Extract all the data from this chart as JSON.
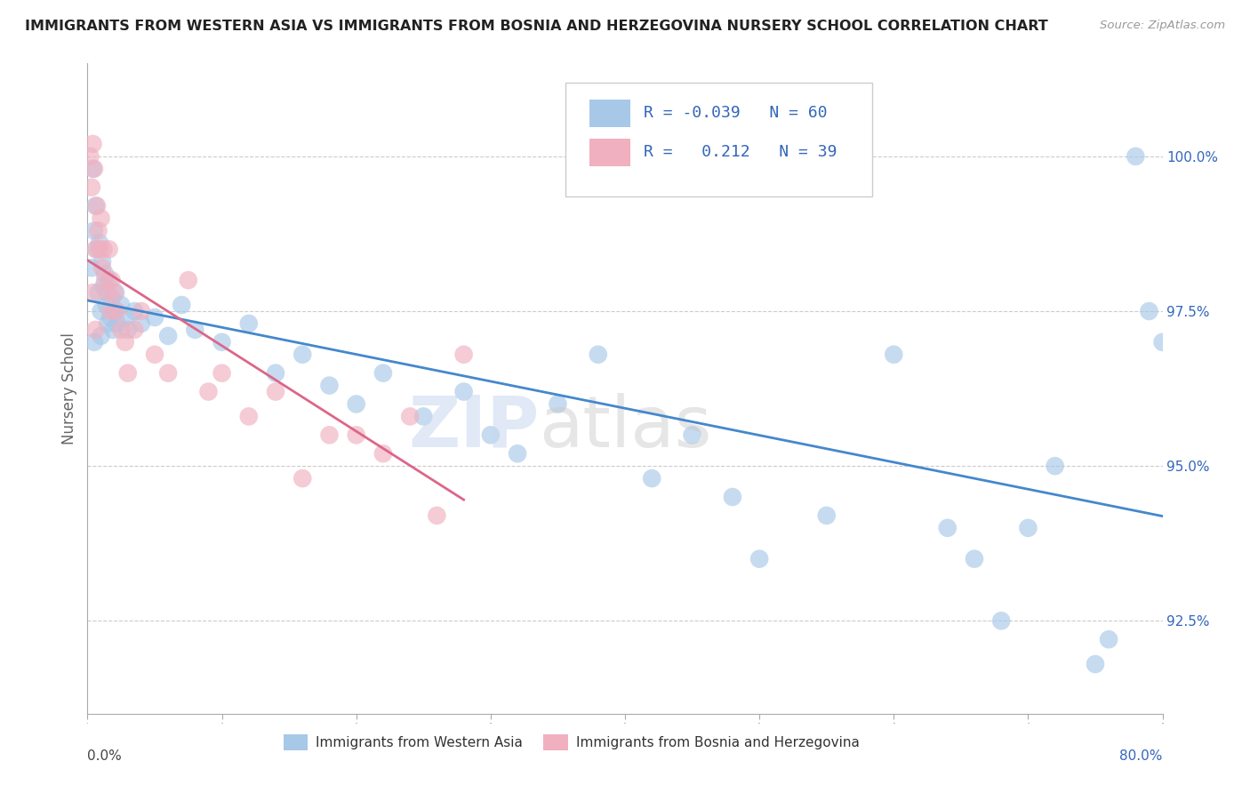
{
  "title": "IMMIGRANTS FROM WESTERN ASIA VS IMMIGRANTS FROM BOSNIA AND HERZEGOVINA NURSERY SCHOOL CORRELATION CHART",
  "source": "Source: ZipAtlas.com",
  "ylabel": "Nursery School",
  "x_min": 0.0,
  "x_max": 80.0,
  "y_min": 91.0,
  "y_max": 101.5,
  "y_ticks": [
    92.5,
    95.0,
    97.5,
    100.0
  ],
  "legend_blue_r": "-0.039",
  "legend_blue_n": "60",
  "legend_pink_r": "0.212",
  "legend_pink_n": "39",
  "blue_color": "#a8c8e8",
  "pink_color": "#f0b0c0",
  "blue_line_color": "#4488cc",
  "pink_line_color": "#dd6688",
  "blue_scatter_x": [
    0.3,
    0.4,
    0.5,
    0.6,
    0.7,
    0.8,
    0.9,
    1.0,
    1.1,
    1.2,
    1.3,
    1.4,
    1.5,
    1.6,
    1.7,
    1.8,
    1.9,
    2.0,
    2.1,
    2.2,
    2.5,
    2.8,
    3.0,
    3.5,
    4.0,
    5.0,
    6.0,
    7.0,
    8.0,
    10.0,
    12.0,
    14.0,
    16.0,
    18.0,
    20.0,
    22.0,
    25.0,
    28.0,
    30.0,
    32.0,
    35.0,
    38.0,
    42.0,
    45.0,
    48.0,
    50.0,
    55.0,
    60.0,
    64.0,
    66.0,
    68.0,
    70.0,
    72.0,
    75.0,
    76.0,
    78.0,
    79.0,
    80.0,
    0.5,
    1.0
  ],
  "blue_scatter_y": [
    98.2,
    99.8,
    98.8,
    99.2,
    98.5,
    97.8,
    98.6,
    97.5,
    98.3,
    97.9,
    98.1,
    97.6,
    97.3,
    98.0,
    97.4,
    97.7,
    97.2,
    97.5,
    97.8,
    97.3,
    97.6,
    97.4,
    97.2,
    97.5,
    97.3,
    97.4,
    97.1,
    97.6,
    97.2,
    97.0,
    97.3,
    96.5,
    96.8,
    96.3,
    96.0,
    96.5,
    95.8,
    96.2,
    95.5,
    95.2,
    96.0,
    96.8,
    94.8,
    95.5,
    94.5,
    93.5,
    94.2,
    96.8,
    94.0,
    93.5,
    92.5,
    94.0,
    95.0,
    91.8,
    92.2,
    100.0,
    97.5,
    97.0,
    97.0,
    97.1
  ],
  "pink_scatter_x": [
    0.2,
    0.3,
    0.4,
    0.5,
    0.6,
    0.7,
    0.8,
    0.9,
    1.0,
    1.1,
    1.2,
    1.3,
    1.5,
    1.6,
    1.7,
    1.8,
    2.0,
    2.2,
    2.5,
    2.8,
    3.0,
    3.5,
    4.0,
    5.0,
    6.0,
    7.5,
    9.0,
    10.0,
    12.0,
    14.0,
    16.0,
    18.0,
    20.0,
    22.0,
    24.0,
    26.0,
    28.0,
    0.4,
    0.6
  ],
  "pink_scatter_y": [
    100.0,
    99.5,
    100.2,
    99.8,
    98.5,
    99.2,
    98.8,
    98.5,
    99.0,
    98.2,
    98.5,
    98.0,
    97.8,
    98.5,
    97.5,
    98.0,
    97.8,
    97.5,
    97.2,
    97.0,
    96.5,
    97.2,
    97.5,
    96.8,
    96.5,
    98.0,
    96.2,
    96.5,
    95.8,
    96.2,
    94.8,
    95.5,
    95.5,
    95.2,
    95.8,
    94.2,
    96.8,
    97.8,
    97.2
  ]
}
